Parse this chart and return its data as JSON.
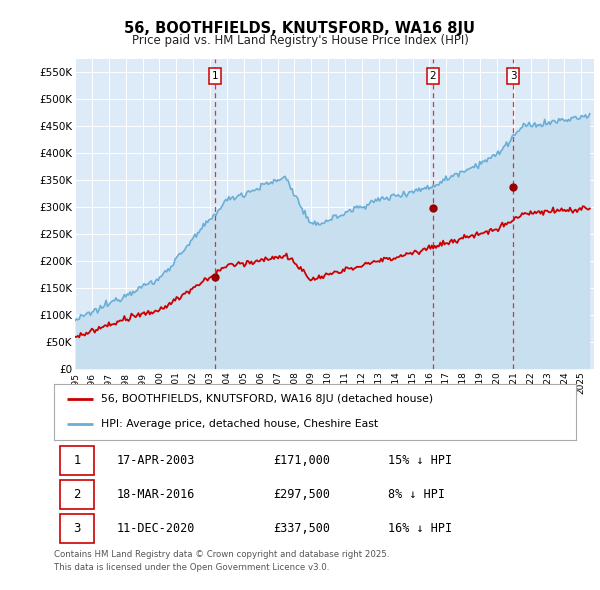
{
  "title": "56, BOOTHFIELDS, KNUTSFORD, WA16 8JU",
  "subtitle": "Price paid vs. HM Land Registry's House Price Index (HPI)",
  "hpi_color": "#6aaed6",
  "hpi_fill": "#c8dff0",
  "price_color": "#cc0000",
  "vline_color": "#cc0000",
  "plot_bg": "#ddeaf7",
  "ylim": [
    0,
    575000
  ],
  "yticks": [
    0,
    50000,
    100000,
    150000,
    200000,
    250000,
    300000,
    350000,
    400000,
    450000,
    500000,
    550000
  ],
  "sales": [
    {
      "date_num": 2003.29,
      "price": 171000,
      "label": "1"
    },
    {
      "date_num": 2016.21,
      "price": 297500,
      "label": "2"
    },
    {
      "date_num": 2020.95,
      "price": 337500,
      "label": "3"
    }
  ],
  "legend_entries": [
    "56, BOOTHFIELDS, KNUTSFORD, WA16 8JU (detached house)",
    "HPI: Average price, detached house, Cheshire East"
  ],
  "table_entries": [
    {
      "num": "1",
      "date": "17-APR-2003",
      "price": "£171,000",
      "pct": "15% ↓ HPI"
    },
    {
      "num": "2",
      "date": "18-MAR-2016",
      "price": "£297,500",
      "pct": "8% ↓ HPI"
    },
    {
      "num": "3",
      "date": "11-DEC-2020",
      "price": "£337,500",
      "pct": "16% ↓ HPI"
    }
  ],
  "footer": "Contains HM Land Registry data © Crown copyright and database right 2025.\nThis data is licensed under the Open Government Licence v3.0."
}
